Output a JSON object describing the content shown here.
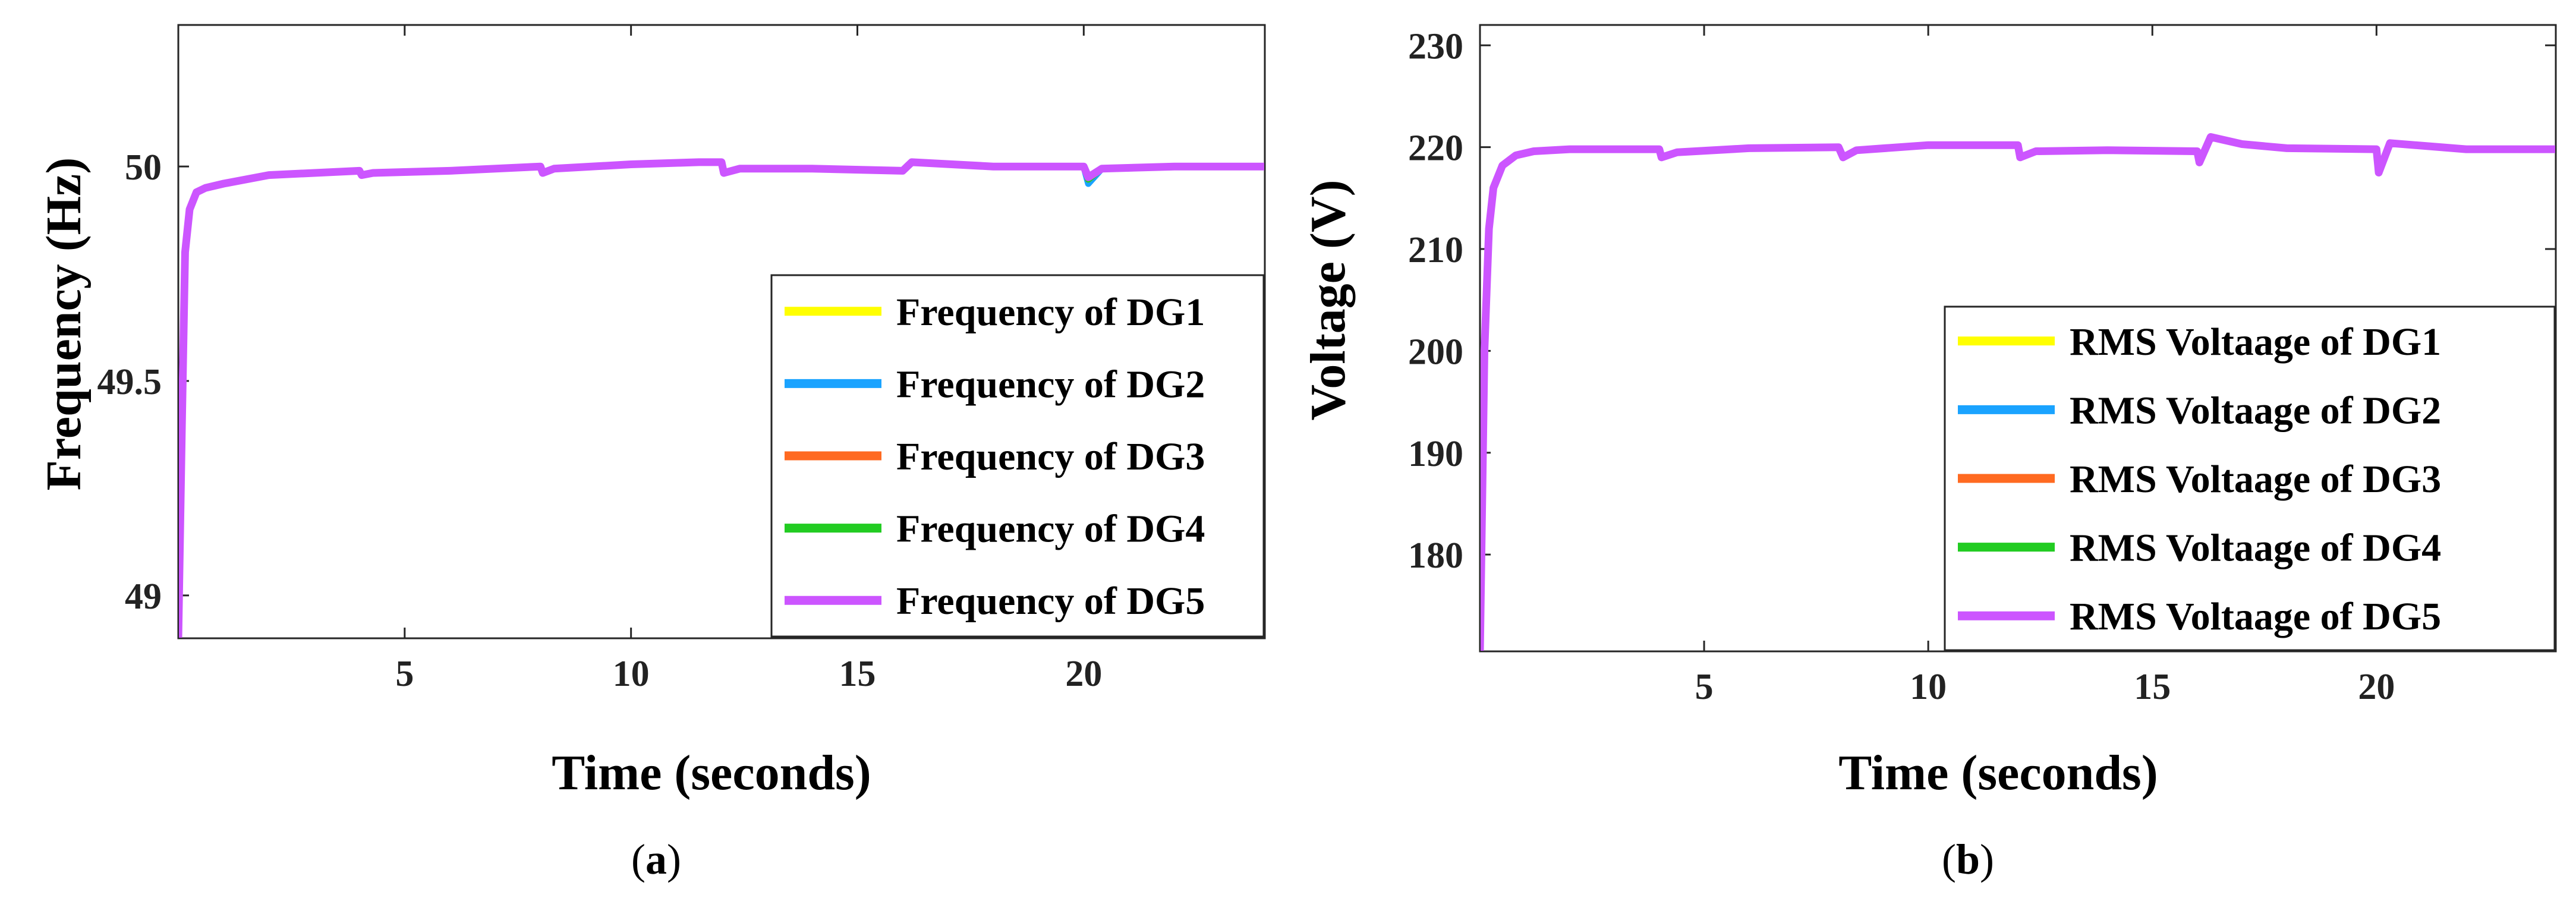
{
  "chart_data": [
    {
      "type": "line",
      "panel": "(a)",
      "caption": {
        "open": "(",
        "letter": "a",
        "close": ")"
      },
      "title": "",
      "xlabel": "Time (seconds)",
      "ylabel": "Frequency (Hz)",
      "xlim": [
        0,
        24
      ],
      "ylim": [
        48.9,
        50.33
      ],
      "xticks": [
        5,
        10,
        15,
        20
      ],
      "yticks": [
        49,
        49.5,
        50
      ],
      "ytick_labels": [
        "49",
        "49.5",
        "50"
      ],
      "legend_position": "bottom-right",
      "series": [
        {
          "name": "Frequency of DG1",
          "color": "#ffff00",
          "x": [
            0,
            0.08,
            0.15,
            0.25,
            0.4,
            0.6,
            1,
            2,
            4,
            4.05,
            4.3,
            6,
            8,
            8.05,
            8.3,
            10,
            11.5,
            12,
            12.05,
            12.4,
            14,
            16,
            16.2,
            18,
            20,
            20.1,
            20.4,
            22,
            24
          ],
          "y": [
            48.9,
            49.4,
            49.8,
            49.9,
            49.94,
            49.95,
            49.96,
            49.98,
            49.99,
            49.98,
            49.985,
            49.99,
            50.0,
            49.985,
            49.995,
            50.005,
            50.01,
            50.01,
            49.985,
            49.995,
            49.995,
            49.99,
            50.01,
            50.0,
            50.0,
            49.97,
            49.995,
            50.0,
            50.0
          ]
        },
        {
          "name": "Frequency of DG2",
          "color": "#1aa3ff",
          "x": [
            0,
            0.08,
            0.15,
            0.25,
            0.4,
            0.6,
            1,
            2,
            4,
            4.05,
            4.3,
            6,
            8,
            8.05,
            8.3,
            10,
            11.5,
            12,
            12.05,
            12.4,
            14,
            16,
            16.2,
            18,
            20,
            20.1,
            20.4,
            22,
            24
          ],
          "y": [
            48.9,
            49.4,
            49.8,
            49.9,
            49.94,
            49.95,
            49.96,
            49.98,
            49.99,
            49.98,
            49.985,
            49.99,
            50.0,
            49.985,
            49.995,
            50.005,
            50.01,
            50.01,
            49.985,
            49.995,
            49.995,
            49.99,
            50.01,
            50.0,
            50.0,
            49.96,
            49.995,
            50.0,
            50.0
          ]
        },
        {
          "name": "Frequency of DG3",
          "color": "#ff6a21",
          "x": [
            0,
            0.08,
            0.15,
            0.25,
            0.4,
            0.6,
            1,
            2,
            4,
            4.05,
            4.3,
            6,
            8,
            8.05,
            8.3,
            10,
            11.5,
            12,
            12.05,
            12.4,
            14,
            16,
            16.2,
            18,
            20,
            20.1,
            20.4,
            22,
            24
          ],
          "y": [
            48.9,
            49.4,
            49.8,
            49.9,
            49.94,
            49.95,
            49.96,
            49.98,
            49.99,
            49.98,
            49.985,
            49.99,
            50.0,
            49.985,
            49.995,
            50.005,
            50.01,
            50.01,
            49.985,
            49.995,
            49.995,
            49.99,
            50.01,
            50.0,
            50.0,
            49.97,
            49.995,
            50.0,
            50.0
          ]
        },
        {
          "name": "Frequency of DG4",
          "color": "#22cc22",
          "x": [
            0,
            0.08,
            0.15,
            0.25,
            0.4,
            0.6,
            1,
            2,
            4,
            4.05,
            4.3,
            6,
            8,
            8.05,
            8.3,
            10,
            11.5,
            12,
            12.05,
            12.4,
            14,
            16,
            16.2,
            18,
            20,
            20.1,
            20.4,
            22,
            24
          ],
          "y": [
            48.9,
            49.4,
            49.8,
            49.9,
            49.94,
            49.95,
            49.96,
            49.98,
            49.99,
            49.98,
            49.985,
            49.99,
            50.0,
            49.985,
            49.995,
            50.005,
            50.01,
            50.01,
            49.985,
            49.995,
            49.995,
            49.99,
            50.01,
            50.0,
            50.0,
            49.97,
            49.995,
            50.0,
            50.0
          ]
        },
        {
          "name": "Frequency of DG5",
          "color": "#cc55ff",
          "x": [
            0,
            0.08,
            0.15,
            0.25,
            0.4,
            0.6,
            1,
            2,
            4,
            4.05,
            4.3,
            6,
            8,
            8.05,
            8.3,
            10,
            11.5,
            12,
            12.05,
            12.4,
            14,
            16,
            16.2,
            18,
            20,
            20.1,
            20.4,
            22,
            24
          ],
          "y": [
            48.9,
            49.4,
            49.8,
            49.9,
            49.94,
            49.95,
            49.96,
            49.98,
            49.99,
            49.98,
            49.985,
            49.99,
            50.0,
            49.985,
            49.995,
            50.005,
            50.01,
            50.01,
            49.985,
            49.995,
            49.995,
            49.99,
            50.01,
            50.0,
            50.0,
            49.975,
            49.995,
            50.0,
            50.0
          ]
        }
      ]
    },
    {
      "type": "line",
      "panel": "(b)",
      "caption": {
        "open": "(",
        "letter": "b",
        "close": ")"
      },
      "title": "",
      "xlabel": "Time (seconds)",
      "ylabel": "Voltage (V)",
      "xlim": [
        0,
        24
      ],
      "ylim": [
        170.5,
        232
      ],
      "xticks": [
        5,
        10,
        15,
        20
      ],
      "yticks": [
        180,
        190,
        200,
        210,
        220,
        230
      ],
      "ytick_labels": [
        "180",
        "190",
        "200",
        "210",
        "220",
        "230"
      ],
      "legend_position": "bottom-right",
      "series": [
        {
          "name": "RMS Voltaage of DG1",
          "color": "#ffff00",
          "x": [
            0,
            0.1,
            0.2,
            0.3,
            0.5,
            0.8,
            1.2,
            2,
            4,
            4.05,
            4.4,
            6,
            8,
            8.1,
            8.4,
            10,
            12,
            12.05,
            12.4,
            14,
            16,
            16.05,
            16.3,
            17,
            18,
            20,
            20.05,
            20.3,
            22,
            24
          ],
          "y": [
            170.5,
            200,
            212,
            216,
            218.2,
            219.2,
            219.6,
            219.8,
            219.8,
            219,
            219.5,
            219.9,
            220,
            219,
            219.7,
            220.2,
            220.2,
            219,
            219.6,
            219.7,
            219.6,
            218.5,
            221,
            220.3,
            219.9,
            219.8,
            217.5,
            220.4,
            219.8,
            219.8
          ]
        },
        {
          "name": "RMS Voltaage of DG2",
          "color": "#1aa3ff",
          "x": [
            0,
            0.1,
            0.2,
            0.3,
            0.5,
            0.8,
            1.2,
            2,
            4,
            4.05,
            4.4,
            6,
            8,
            8.1,
            8.4,
            10,
            12,
            12.05,
            12.4,
            14,
            16,
            16.05,
            16.3,
            17,
            18,
            20,
            20.05,
            20.3,
            22,
            24
          ],
          "y": [
            170.5,
            200,
            212,
            216,
            218.2,
            219.2,
            219.6,
            219.8,
            219.8,
            219,
            219.5,
            219.9,
            220,
            219,
            219.7,
            220.2,
            220.2,
            219,
            219.6,
            219.7,
            219.6,
            218.5,
            221,
            220.3,
            219.9,
            219.8,
            217.5,
            220.4,
            219.8,
            219.8
          ]
        },
        {
          "name": "RMS Voltaage of DG3",
          "color": "#ff6a21",
          "x": [
            0,
            0.1,
            0.2,
            0.3,
            0.5,
            0.8,
            1.2,
            2,
            4,
            4.05,
            4.4,
            6,
            8,
            8.1,
            8.4,
            10,
            12,
            12.05,
            12.4,
            14,
            16,
            16.05,
            16.3,
            17,
            18,
            20,
            20.05,
            20.3,
            22,
            24
          ],
          "y": [
            170.5,
            200,
            212,
            216,
            218.2,
            219.2,
            219.6,
            219.8,
            219.8,
            219,
            219.5,
            219.9,
            220,
            219,
            219.7,
            220.2,
            220.2,
            219,
            219.6,
            219.7,
            219.6,
            218.5,
            221,
            220.3,
            219.9,
            219.8,
            217.5,
            220.4,
            219.8,
            219.8
          ]
        },
        {
          "name": "RMS Voltaage of DG4",
          "color": "#22cc22",
          "x": [
            0,
            0.1,
            0.2,
            0.3,
            0.5,
            0.8,
            1.2,
            2,
            4,
            4.05,
            4.4,
            6,
            8,
            8.1,
            8.4,
            10,
            12,
            12.05,
            12.4,
            14,
            16,
            16.05,
            16.3,
            17,
            18,
            20,
            20.05,
            20.3,
            22,
            24
          ],
          "y": [
            170.5,
            200,
            212,
            216,
            218.2,
            219.2,
            219.6,
            219.8,
            219.8,
            219,
            219.5,
            219.9,
            220,
            219,
            219.7,
            220.2,
            220.2,
            219,
            219.6,
            219.7,
            219.6,
            218.5,
            221,
            220.3,
            219.9,
            219.8,
            217.5,
            220.4,
            219.8,
            219.8
          ]
        },
        {
          "name": "RMS Voltaage of DG5",
          "color": "#cc55ff",
          "x": [
            0,
            0.1,
            0.2,
            0.3,
            0.5,
            0.8,
            1.2,
            2,
            4,
            4.05,
            4.4,
            6,
            8,
            8.1,
            8.4,
            10,
            12,
            12.05,
            12.4,
            14,
            16,
            16.05,
            16.3,
            17,
            18,
            20,
            20.05,
            20.3,
            22,
            24
          ],
          "y": [
            170.5,
            200,
            212,
            216,
            218.2,
            219.2,
            219.6,
            219.8,
            219.8,
            219,
            219.5,
            219.9,
            220,
            219,
            219.7,
            220.2,
            220.2,
            219,
            219.6,
            219.7,
            219.6,
            218.5,
            221,
            220.3,
            219.9,
            219.8,
            217.5,
            220.4,
            219.8,
            219.8
          ]
        }
      ]
    }
  ]
}
